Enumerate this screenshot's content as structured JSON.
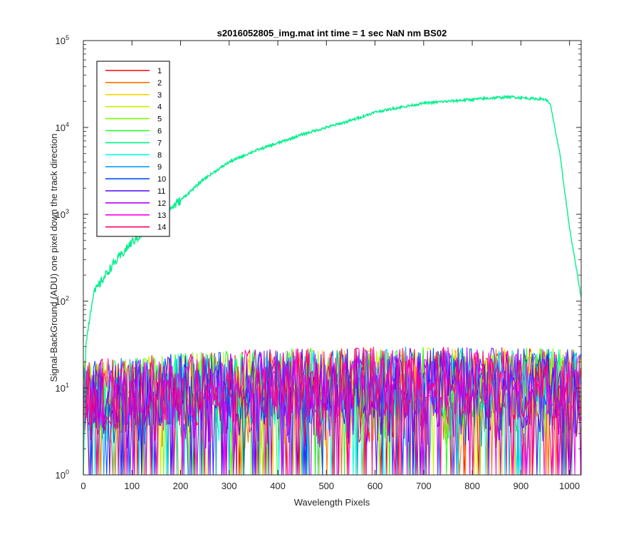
{
  "chart_data": {
    "type": "line",
    "title": "s2016052805_img.mat int time = 1 sec  NaN nm BS02",
    "xlabel": "Wavelength Pixels",
    "ylabel": "Signal-BackGround (ADU) one pixel down the track direction",
    "xlim": [
      0,
      1024
    ],
    "ylim": [
      1,
      100000
    ],
    "yscale": "log",
    "xticks": [
      "0",
      "100",
      "200",
      "300",
      "400",
      "500",
      "600",
      "700",
      "800",
      "900",
      "1000"
    ],
    "yticks": [
      {
        "base": "10",
        "exp": "0"
      },
      {
        "base": "10",
        "exp": "1"
      },
      {
        "base": "10",
        "exp": "2"
      },
      {
        "base": "10",
        "exp": "3"
      },
      {
        "base": "10",
        "exp": "4"
      },
      {
        "base": "10",
        "exp": "5"
      }
    ],
    "legend_position": "top-left",
    "grid": false,
    "series": [
      {
        "name": "1",
        "color": "#ff0000"
      },
      {
        "name": "2",
        "color": "#ff6e00"
      },
      {
        "name": "3",
        "color": "#ffd200"
      },
      {
        "name": "4",
        "color": "#c8f000"
      },
      {
        "name": "5",
        "color": "#78ff00"
      },
      {
        "name": "6",
        "color": "#1eff1e"
      },
      {
        "name": "7",
        "color": "#00f08c",
        "x": [
          0,
          5,
          10,
          20,
          40,
          60,
          80,
          100,
          130,
          160,
          200,
          250,
          300,
          350,
          400,
          450,
          500,
          550,
          600,
          650,
          700,
          750,
          800,
          850,
          880,
          900,
          950,
          960,
          980,
          1000,
          1024
        ],
        "y": [
          1,
          30,
          50,
          120,
          180,
          260,
          350,
          480,
          650,
          950,
          1450,
          2600,
          4000,
          5300,
          6600,
          8300,
          10000,
          12000,
          15000,
          17000,
          19000,
          20000,
          21000,
          22000,
          22500,
          22000,
          21000,
          19000,
          5000,
          700,
          110
        ]
      },
      {
        "name": "8",
        "color": "#00ffdc"
      },
      {
        "name": "9",
        "color": "#00a0ff"
      },
      {
        "name": "10",
        "color": "#0050ff"
      },
      {
        "name": "11",
        "color": "#5000ff"
      },
      {
        "name": "12",
        "color": "#b400ff"
      },
      {
        "name": "13",
        "color": "#ff00e6"
      },
      {
        "name": "14",
        "color": "#ff0064"
      }
    ]
  }
}
